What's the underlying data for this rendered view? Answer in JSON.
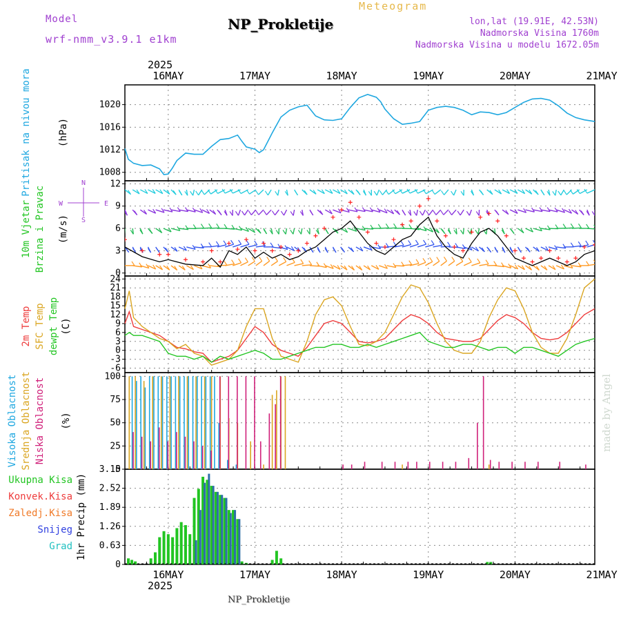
{
  "header": {
    "model_label": "Model",
    "model_name": "wrf-nmm_v3.9.1 e1km",
    "product": "Meteogram",
    "station": "NP_Prokletije",
    "lonlat": "lon,lat (19.91E, 42.53N)",
    "elevation": "Nadmorska Visina 1760m",
    "elevation_model": "Nadmorska Visina u modelu 1672.05m",
    "year_top": "2025",
    "year_bottom": "2025",
    "footer_station": "NP_Prokletije",
    "watermark": "made by Angel"
  },
  "colors": {
    "pressure": "#1ea7e0",
    "temp2m": "#ee3b3b",
    "sfc": "#daa520",
    "dewpt": "#22c522",
    "grid": "#888888",
    "model": "#a040d0",
    "product": "#e6b84a",
    "wind_speed": "#000000",
    "gust": "#ff2020"
  },
  "chart_data": [
    {
      "type": "line",
      "name": "pressure",
      "ylabel": "Pritisak na nivou mora",
      "unit": "(hPa)",
      "yticks": [
        "1008",
        "1012",
        "1016",
        "1020"
      ],
      "ylim": [
        1006.5,
        1023.5
      ],
      "x_days": [
        0,
        0.04,
        0.1,
        0.2,
        0.3,
        0.4,
        0.45,
        0.5,
        0.55,
        0.6,
        0.7,
        0.8,
        0.9,
        1.0,
        1.1,
        1.2,
        1.3,
        1.35,
        1.4,
        1.5,
        1.55,
        1.6,
        1.7,
        1.8,
        1.9,
        2.0,
        2.1,
        2.2,
        2.3,
        2.4,
        2.5,
        2.6,
        2.7,
        2.8,
        2.9,
        2.95,
        3.0,
        3.1,
        3.2,
        3.3,
        3.4,
        3.45,
        3.5,
        3.6,
        3.7,
        3.8,
        3.9,
        4.0,
        4.1,
        4.2,
        4.3,
        4.4,
        4.5,
        4.6,
        4.7,
        4.8,
        4.9,
        5.0,
        5.1,
        5.2,
        5.3,
        5.42
      ],
      "values": [
        1012.2,
        1010.3,
        1009.6,
        1009.2,
        1009.3,
        1008.6,
        1007.6,
        1007.7,
        1008.8,
        1010.1,
        1011.4,
        1011.2,
        1011.2,
        1012.6,
        1013.8,
        1014.0,
        1014.6,
        1013.5,
        1012.5,
        1012.1,
        1011.5,
        1012.0,
        1015.0,
        1017.8,
        1019.0,
        1019.6,
        1019.9,
        1018.0,
        1017.3,
        1017.2,
        1017.5,
        1019.5,
        1021.2,
        1021.8,
        1021.3,
        1020.5,
        1019.2,
        1017.5,
        1016.5,
        1016.7,
        1017.0,
        1018.0,
        1019.0,
        1019.5,
        1019.7,
        1019.5,
        1019.0,
        1018.2,
        1018.7,
        1018.6,
        1018.2,
        1018.6,
        1019.5,
        1020.4,
        1021.0,
        1021.1,
        1020.8,
        1019.8,
        1018.5,
        1017.7,
        1017.3,
        1017.0
      ]
    },
    {
      "type": "barbs",
      "name": "wind",
      "ylabel": "10m Vjetar",
      "ylabel2": "Brzina i Pravac",
      "unit": "(m/s)",
      "yticks": [
        "0",
        "3",
        "6",
        "9",
        "12"
      ],
      "ylim": [
        -0.4,
        12.4
      ],
      "compass": {
        "n": "N",
        "s": "S",
        "e": "E",
        "w": "W"
      },
      "levels": [
        1,
        3.5,
        6,
        8.5,
        11.2
      ],
      "level_colors": [
        "#ff9922",
        "#3355ee",
        "#22bb55",
        "#8833dd",
        "#22ccdd"
      ],
      "speed_x": [
        0,
        0.2,
        0.4,
        0.5,
        0.7,
        0.9,
        1.0,
        1.1,
        1.2,
        1.3,
        1.4,
        1.5,
        1.6,
        1.7,
        1.8,
        1.9,
        2.0,
        2.1,
        2.2,
        2.3,
        2.4,
        2.5,
        2.6,
        2.7,
        2.8,
        2.9,
        3.0,
        3.1,
        3.2,
        3.3,
        3.4,
        3.5,
        3.6,
        3.7,
        3.8,
        3.9,
        4.0,
        4.1,
        4.2,
        4.3,
        4.4,
        4.5,
        4.6,
        4.7,
        4.8,
        4.9,
        5.0,
        5.1,
        5.2,
        5.3,
        5.42
      ],
      "speed": [
        3.5,
        2.2,
        1.5,
        1.8,
        1.2,
        1.0,
        2.0,
        0.8,
        3.0,
        2.5,
        3.5,
        2.0,
        2.8,
        2.0,
        2.5,
        1.8,
        2.2,
        3.0,
        3.5,
        4.5,
        5.5,
        6.0,
        7.0,
        5.5,
        4.0,
        3.0,
        2.5,
        3.5,
        4.5,
        5.0,
        6.5,
        7.5,
        5.0,
        3.5,
        2.5,
        2.0,
        4.0,
        5.5,
        6.0,
        5.0,
        3.5,
        2.0,
        1.5,
        1.0,
        1.5,
        2.0,
        1.5,
        1.0,
        1.5,
        2.5,
        3.0
      ],
      "gust": [
        4.5,
        3.0,
        2.5,
        2.5,
        1.8,
        1.5,
        3.0,
        1.5,
        4.0,
        3.2,
        4.5,
        3.0,
        4.0,
        3.0,
        3.5,
        2.5,
        3.0,
        4.0,
        5.0,
        6.0,
        7.5,
        8.5,
        9.5,
        7.5,
        5.5,
        4.0,
        3.5,
        4.5,
        6.5,
        7.0,
        9.0,
        10.0,
        7.0,
        5.0,
        3.5,
        3.0,
        5.5,
        7.5,
        8.0,
        7.0,
        5.0,
        3.0,
        2.0,
        1.5,
        2.0,
        3.0,
        2.0,
        1.5,
        2.0,
        3.5,
        3.8
      ]
    },
    {
      "type": "line",
      "name": "temperature",
      "ylabel": "2m Temp",
      "ylabel2": "SFC Temp",
      "ylabel3": "dewpt Temp",
      "unit": "(C)",
      "yticks": [
        "-6",
        "-3",
        "0",
        "3",
        "6",
        "9",
        "12",
        "15",
        "18",
        "21",
        "24"
      ],
      "ylim": [
        -7.5,
        25
      ],
      "x_days": [
        0,
        0.05,
        0.1,
        0.2,
        0.3,
        0.4,
        0.5,
        0.6,
        0.7,
        0.8,
        0.9,
        1.0,
        1.1,
        1.2,
        1.3,
        1.4,
        1.5,
        1.6,
        1.7,
        1.8,
        1.9,
        2.0,
        2.1,
        2.2,
        2.3,
        2.4,
        2.5,
        2.6,
        2.7,
        2.8,
        2.9,
        3.0,
        3.1,
        3.2,
        3.3,
        3.4,
        3.5,
        3.6,
        3.7,
        3.8,
        3.9,
        4.0,
        4.1,
        4.2,
        4.3,
        4.4,
        4.5,
        4.6,
        4.7,
        4.8,
        4.9,
        5.0,
        5.1,
        5.2,
        5.3,
        5.42
      ],
      "series": [
        {
          "name": "2m Temp",
          "values": [
            9,
            13,
            8,
            7,
            6,
            5,
            3,
            1,
            0.5,
            -0.5,
            -1,
            -4,
            -3,
            -2,
            0,
            4,
            8,
            6,
            2,
            0,
            -1,
            -2,
            1,
            5,
            9,
            10,
            9,
            6,
            3,
            2.5,
            3,
            4,
            7,
            10,
            12,
            11,
            9,
            6,
            4,
            3.5,
            3,
            3,
            4,
            7,
            10,
            12,
            11,
            9,
            6,
            4,
            3.5,
            4,
            6,
            9,
            12,
            14
          ]
        },
        {
          "name": "SFC Temp",
          "values": [
            14,
            20,
            11,
            8,
            6,
            4,
            3,
            0.5,
            2,
            -1,
            -2,
            -5,
            -4,
            -3,
            0,
            8,
            14,
            14,
            4,
            -2,
            -3,
            -4,
            3,
            12,
            17,
            18,
            15,
            8,
            2,
            1.5,
            3,
            6,
            12,
            18,
            22,
            21,
            16,
            9,
            3,
            0,
            -1,
            -1,
            3,
            11,
            17,
            21,
            20,
            14,
            6,
            1,
            -1,
            -1,
            4,
            12,
            21,
            24
          ]
        },
        {
          "name": "dewpt Temp",
          "values": [
            5,
            6,
            5,
            5,
            4,
            3,
            -1,
            -2,
            -2,
            -3,
            -2,
            -4,
            -2,
            -3,
            -2,
            -1,
            0,
            -1,
            -3,
            -3,
            -2,
            -1,
            0,
            1,
            1,
            2,
            2,
            1,
            1,
            2,
            1,
            2,
            3,
            4,
            5,
            6,
            3,
            2,
            1,
            1,
            2,
            2,
            1,
            0,
            1,
            1,
            -1,
            1,
            1,
            0,
            -1,
            -2,
            0,
            2,
            3,
            4
          ]
        }
      ]
    },
    {
      "type": "bar",
      "name": "clouds",
      "ylabel": "Visoka Oblacnost",
      "ylabel2": "Srednja Oblacnost",
      "ylabel3": "Niska Oblacnost",
      "unit": "(%)",
      "yticks": [
        "0",
        "25",
        "50",
        "75",
        "100"
      ],
      "ylim": [
        0,
        104
      ],
      "series": [
        {
          "name": "Visoka Oblacnost",
          "color": "#1ea7e0",
          "x": [
            0.1,
            0.15,
            0.2,
            0.25,
            0.3,
            0.35,
            0.4,
            0.45,
            0.5,
            0.55,
            0.6,
            0.65,
            0.7,
            0.75,
            0.8,
            0.85,
            0.9,
            0.95,
            1.0,
            1.05,
            1.1,
            1.2,
            1.3
          ],
          "values": [
            100,
            95,
            100,
            88,
            100,
            100,
            100,
            100,
            100,
            100,
            100,
            100,
            100,
            100,
            100,
            100,
            100,
            100,
            100,
            100,
            50,
            10,
            5
          ]
        },
        {
          "name": "Srednja Oblacnost",
          "color": "#daa520",
          "x": [
            0.05,
            0.12,
            0.22,
            0.32,
            0.42,
            0.52,
            0.62,
            0.72,
            0.82,
            0.92,
            1.0,
            1.1,
            1.2,
            1.3,
            1.45,
            1.6,
            1.7,
            1.75,
            1.8,
            1.85,
            3.2,
            4.2
          ],
          "values": [
            100,
            100,
            95,
            100,
            100,
            100,
            100,
            100,
            100,
            100,
            100,
            100,
            55,
            50,
            30,
            5,
            80,
            85,
            100,
            100,
            5,
            5
          ]
        },
        {
          "name": "Niska Oblacnost",
          "color": "#d0207a",
          "x": [
            0.08,
            0.18,
            0.28,
            0.38,
            0.48,
            0.58,
            0.68,
            0.78,
            0.88,
            0.98,
            1.08,
            1.18,
            1.28,
            1.38,
            1.48,
            1.55,
            1.65,
            1.72,
            1.78,
            2.5,
            2.6,
            2.75,
            2.95,
            3.1,
            3.25,
            3.35,
            3.5,
            3.65,
            3.8,
            3.95,
            4.05,
            4.12,
            4.2,
            4.3,
            4.45,
            4.6,
            4.75,
            5.0,
            5.3
          ],
          "values": [
            40,
            35,
            30,
            45,
            30,
            40,
            35,
            30,
            25,
            20,
            100,
            100,
            100,
            100,
            100,
            30,
            60,
            70,
            100,
            5,
            5,
            8,
            8,
            8,
            8,
            8,
            8,
            8,
            8,
            12,
            50,
            100,
            10,
            8,
            8,
            8,
            8,
            8,
            5
          ]
        }
      ]
    },
    {
      "type": "bar",
      "name": "precip",
      "ylabel": "1hr Precip",
      "unit": "(mm)",
      "yticks": [
        "0",
        "0.63",
        "1.26",
        "1.89",
        "2.52",
        "3.15"
      ],
      "ylim": [
        0,
        3.15
      ],
      "legend": [
        {
          "label": "Ukupna Kisa",
          "color": "#22c522"
        },
        {
          "label": "Konvek.Kisa",
          "color": "#ee3b3b"
        },
        {
          "label": "Zaledj.Kisa",
          "color": "#f07a28"
        },
        {
          "label": "Snijeg",
          "color": "#3040e0"
        },
        {
          "label": "Grad",
          "color": "#20c0c0"
        }
      ],
      "x_days": [
        0.04,
        0.08,
        0.12,
        0.3,
        0.35,
        0.4,
        0.45,
        0.5,
        0.55,
        0.6,
        0.65,
        0.7,
        0.75,
        0.8,
        0.85,
        0.9,
        0.95,
        1.0,
        1.05,
        1.1,
        1.15,
        1.2,
        1.25,
        1.3,
        1.35,
        1.4,
        1.7,
        1.75,
        1.8,
        4.18,
        4.22
      ],
      "rain": [
        0.2,
        0.15,
        0.1,
        0.2,
        0.4,
        0.9,
        1.1,
        1.0,
        0.9,
        1.2,
        1.4,
        1.3,
        1.0,
        2.2,
        2.5,
        2.9,
        2.8,
        2.6,
        2.4,
        2.3,
        2.2,
        1.8,
        1.8,
        1.5,
        0.1,
        0.05,
        0.15,
        0.45,
        0.2,
        0.08,
        0.08
      ],
      "snow": [
        0,
        0,
        0,
        0,
        0,
        0,
        0,
        0,
        0,
        0,
        0,
        0,
        0,
        0.8,
        1.8,
        2.7,
        3.0,
        2.6,
        2.4,
        2.3,
        2.2,
        1.7,
        1.8,
        1.5,
        0,
        0,
        0,
        0,
        0,
        0,
        0
      ]
    }
  ],
  "x_axis": {
    "day_labels": [
      "16MAY",
      "17MAY",
      "18MAY",
      "19MAY",
      "20MAY",
      "21MAY"
    ],
    "day_positions": [
      0.5,
      1.5,
      2.5,
      3.5,
      4.5,
      5.5
    ],
    "grid_positions": [
      0.5,
      1.5,
      2.5,
      3.5,
      4.5
    ]
  }
}
